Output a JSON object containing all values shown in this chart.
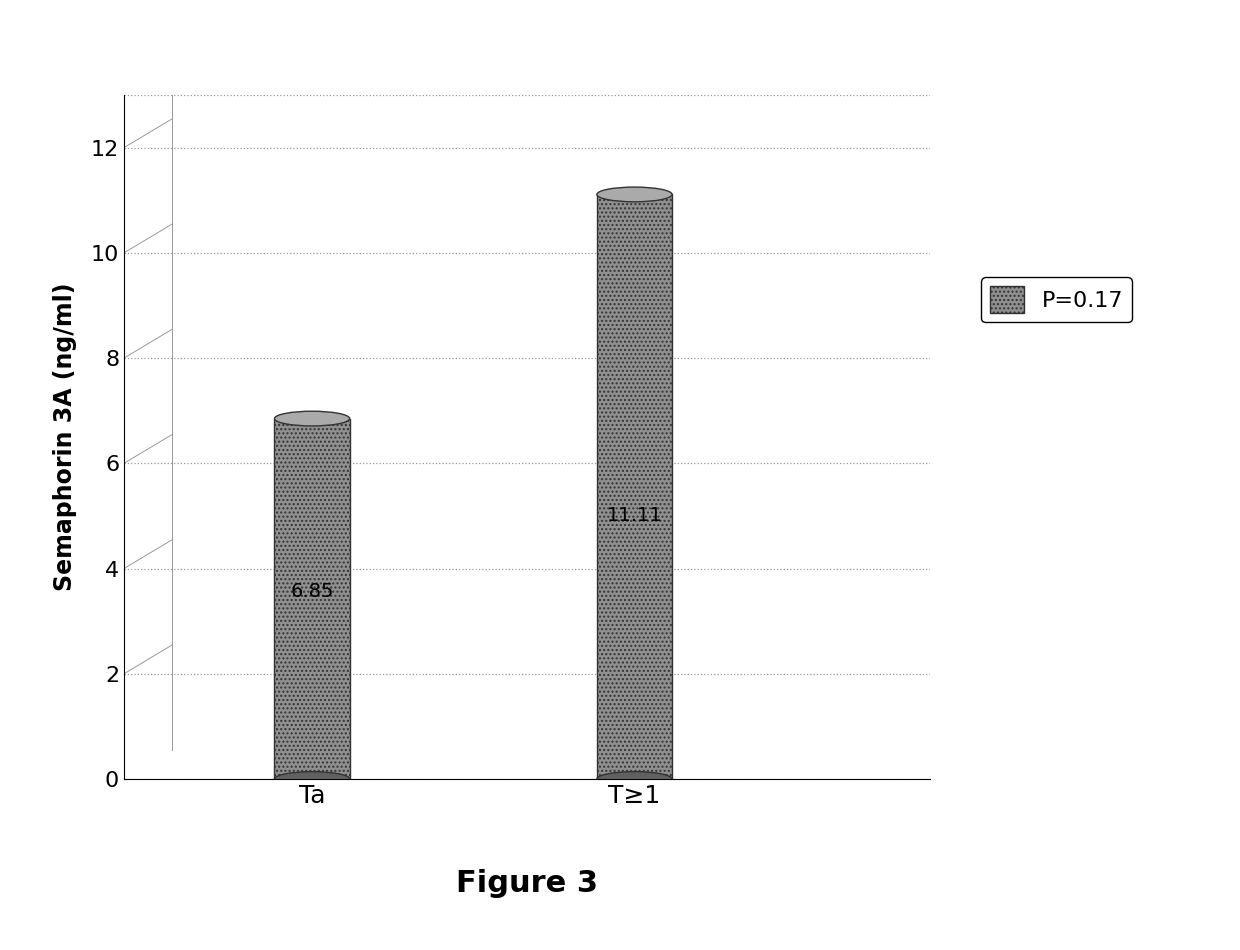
{
  "categories": [
    "Ta",
    "T≥1"
  ],
  "values": [
    6.85,
    11.11
  ],
  "bar_color": "#888888",
  "ylabel": "Semaphorin 3A (ng/ml)",
  "figure_label": "Figure 3",
  "legend_label": "P=0.17",
  "ylim": [
    0,
    13
  ],
  "yticks": [
    0,
    2,
    4,
    6,
    8,
    10,
    12
  ],
  "bar_labels": [
    "6.85",
    "11.11"
  ],
  "background_color": "#ffffff",
  "grid_color": "#999999",
  "axis_fontsize": 17,
  "tick_fontsize": 16,
  "label_fontsize": 14,
  "figure_label_fontsize": 22,
  "legend_fontsize": 16
}
